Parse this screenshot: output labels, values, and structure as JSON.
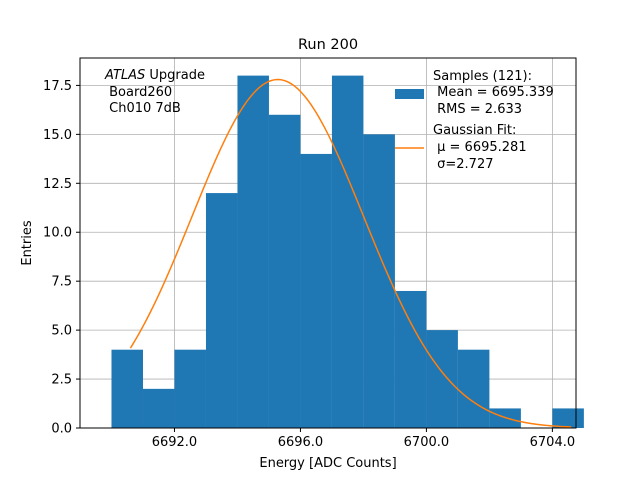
{
  "chart_data": {
    "type": "bar",
    "title": "Run 200",
    "xlabel": "Energy [ADC Counts]",
    "ylabel": "Entries",
    "xlim": [
      6689.0,
      6704.75
    ],
    "ylim": [
      0,
      18.9
    ],
    "grid": true,
    "xticks": [
      {
        "value": 6692.0,
        "label": "6692.0"
      },
      {
        "value": 6696.0,
        "label": "6696.0"
      },
      {
        "value": 6700.0,
        "label": "6700.0"
      },
      {
        "value": 6704.0,
        "label": "6704.0"
      }
    ],
    "yticks": [
      {
        "value": 0.0,
        "label": "0.0"
      },
      {
        "value": 2.5,
        "label": "2.5"
      },
      {
        "value": 5.0,
        "label": "5.0"
      },
      {
        "value": 7.5,
        "label": "7.5"
      },
      {
        "value": 10.0,
        "label": "10.0"
      },
      {
        "value": 12.5,
        "label": "12.5"
      },
      {
        "value": 15.0,
        "label": "15.0"
      },
      {
        "value": 17.5,
        "label": "17.5"
      }
    ],
    "histogram": {
      "name": "Samples",
      "color": "#1f77b4",
      "bins": [
        {
          "lo": 6690.0,
          "hi": 6691.0,
          "count": 4
        },
        {
          "lo": 6691.0,
          "hi": 6692.0,
          "count": 2
        },
        {
          "lo": 6692.0,
          "hi": 6693.0,
          "count": 4
        },
        {
          "lo": 6693.0,
          "hi": 6694.0,
          "count": 12
        },
        {
          "lo": 6694.0,
          "hi": 6695.0,
          "count": 18
        },
        {
          "lo": 6695.0,
          "hi": 6696.0,
          "count": 16
        },
        {
          "lo": 6696.0,
          "hi": 6697.0,
          "count": 14
        },
        {
          "lo": 6697.0,
          "hi": 6698.0,
          "count": 18
        },
        {
          "lo": 6698.0,
          "hi": 6699.0,
          "count": 15
        },
        {
          "lo": 6699.0,
          "hi": 6700.0,
          "count": 7
        },
        {
          "lo": 6700.0,
          "hi": 6701.0,
          "count": 5
        },
        {
          "lo": 6701.0,
          "hi": 6702.0,
          "count": 4
        },
        {
          "lo": 6702.0,
          "hi": 6703.0,
          "count": 1
        },
        {
          "lo": 6703.0,
          "hi": 6704.0,
          "count": 0
        },
        {
          "lo": 6704.0,
          "hi": 6705.0,
          "count": 1
        }
      ]
    },
    "fit": {
      "name": "Gaussian Fit",
      "color": "#ff7f0e",
      "amplitude": 17.8,
      "mu": 6695.281,
      "sigma": 2.727,
      "x_range": [
        6690.6,
        6704.6
      ]
    },
    "annotation": {
      "line1_italic": "ATLAS",
      "line1_rest": " Upgrade",
      "line2": " Board260",
      "line3": " Ch010 7dB"
    },
    "legend": {
      "position": "top-right",
      "samples_lines": [
        "Samples (121):",
        " Mean = 6695.339",
        " RMS = 2.633"
      ],
      "fit_lines": [
        "Gaussian Fit:",
        " μ = 6695.281",
        " σ=2.727"
      ]
    }
  }
}
